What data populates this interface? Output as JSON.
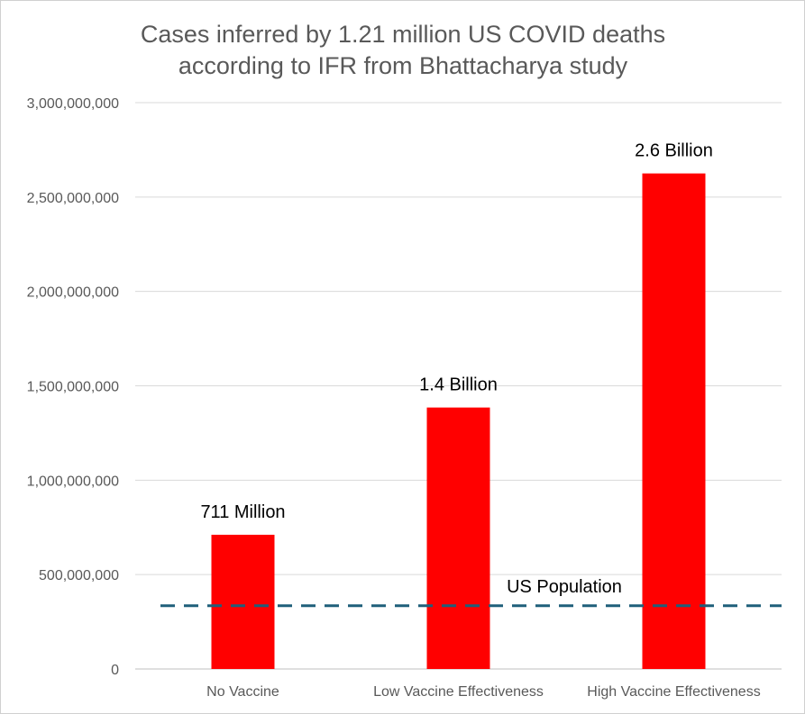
{
  "chart_data": {
    "type": "bar",
    "title_lines": [
      "Cases inferred by 1.21 million US COVID deaths",
      "according to IFR from Bhattacharya study"
    ],
    "categories": [
      "No Vaccine",
      "Low Vaccine Effectiveness",
      "High Vaccine Effectiveness"
    ],
    "values": [
      711000000,
      1385000000,
      2625000000
    ],
    "data_labels": [
      "711 Million",
      "1.4 Billion",
      "2.6 Billion"
    ],
    "ylim": [
      0,
      3000000000
    ],
    "yticks": [
      0,
      500000000,
      1000000000,
      1500000000,
      2000000000,
      2500000000,
      3000000000
    ],
    "ytick_labels": [
      "0",
      "500,000,000",
      "1,000,000,000",
      "1,500,000,000",
      "2,000,000,000",
      "2,500,000,000",
      "3,000,000,000"
    ],
    "grid": true,
    "bar_color": "#ff0000",
    "reference_line": {
      "label": "US Population",
      "value": 335000000,
      "color": "#1f5f7a",
      "style": "dashed"
    }
  }
}
